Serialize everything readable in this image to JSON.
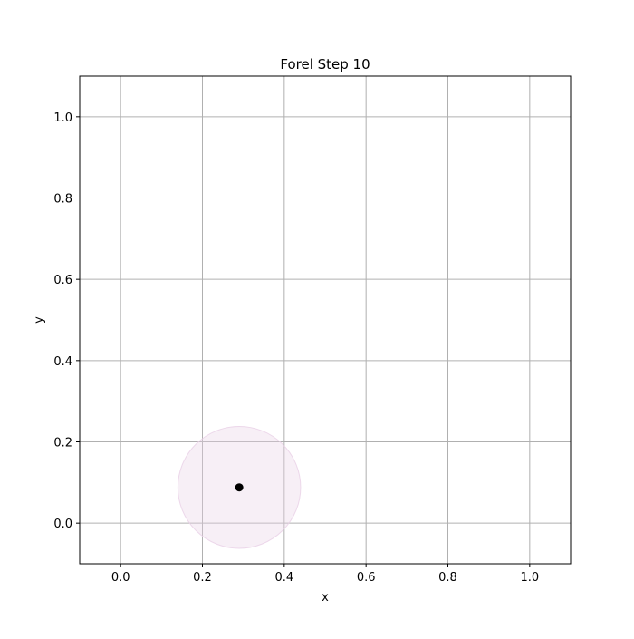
{
  "chart_data": {
    "type": "scatter",
    "title": "Forel Step 10",
    "xlabel": "x",
    "ylabel": "y",
    "xlim": [
      -0.1,
      1.1
    ],
    "ylim": [
      -0.1,
      1.1
    ],
    "xticks": [
      "0.0",
      "0.2",
      "0.4",
      "0.6",
      "0.8",
      "1.0"
    ],
    "yticks": [
      "0.0",
      "0.2",
      "0.4",
      "0.6",
      "0.8",
      "1.0"
    ],
    "grid": true,
    "points": [
      {
        "x": 0.29,
        "y": 0.088,
        "color": "#000000"
      }
    ],
    "circles": [
      {
        "cx": 0.29,
        "cy": 0.088,
        "r": 0.15,
        "color": "#e8d0e6",
        "opacity": 0.35
      }
    ]
  }
}
